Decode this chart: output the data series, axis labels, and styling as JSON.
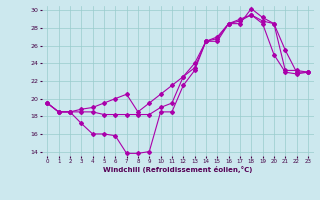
{
  "xlabel": "Windchill (Refroidissement éolien,°C)",
  "background_color": "#cce8ee",
  "grid_color": "#99cccc",
  "line_color": "#aa00aa",
  "xlim": [
    -0.5,
    23.5
  ],
  "ylim": [
    13.5,
    30.5
  ],
  "yticks": [
    14,
    16,
    18,
    20,
    22,
    24,
    26,
    28,
    30
  ],
  "xticks": [
    0,
    1,
    2,
    3,
    4,
    5,
    6,
    7,
    8,
    9,
    10,
    11,
    12,
    13,
    14,
    15,
    16,
    17,
    18,
    19,
    20,
    21,
    22,
    23
  ],
  "series": [
    {
      "x": [
        0,
        1,
        2,
        3,
        4,
        5,
        6,
        7,
        8,
        9,
        10,
        11,
        12,
        13,
        14,
        15,
        16,
        17,
        18,
        19,
        20,
        21,
        22,
        23
      ],
      "y": [
        19.5,
        18.5,
        18.5,
        17.2,
        16.0,
        16.0,
        15.8,
        13.8,
        13.8,
        14.0,
        18.5,
        18.5,
        21.5,
        23.2,
        26.5,
        26.5,
        28.5,
        28.5,
        30.2,
        29.2,
        28.5,
        23.2,
        23.2,
        23.0
      ]
    },
    {
      "x": [
        0,
        1,
        2,
        3,
        4,
        5,
        6,
        7,
        8,
        9,
        10,
        11,
        12,
        13,
        14,
        15,
        16,
        17,
        18,
        19,
        20,
        21,
        22,
        23
      ],
      "y": [
        19.5,
        18.5,
        18.5,
        18.5,
        18.5,
        18.2,
        18.2,
        18.2,
        18.2,
        18.2,
        19.0,
        19.5,
        22.5,
        24.0,
        26.5,
        26.8,
        28.5,
        28.8,
        29.5,
        28.5,
        25.0,
        23.0,
        22.8,
        23.0
      ]
    },
    {
      "x": [
        0,
        1,
        2,
        3,
        4,
        5,
        6,
        7,
        8,
        9,
        10,
        11,
        12,
        13,
        14,
        15,
        16,
        17,
        18,
        19,
        20,
        21,
        22,
        23
      ],
      "y": [
        19.5,
        18.5,
        18.5,
        18.8,
        19.0,
        19.5,
        20.0,
        20.5,
        18.5,
        19.5,
        20.5,
        21.5,
        22.5,
        23.5,
        26.5,
        27.0,
        28.5,
        29.0,
        29.5,
        28.8,
        28.5,
        25.5,
        23.0,
        23.0
      ]
    }
  ]
}
